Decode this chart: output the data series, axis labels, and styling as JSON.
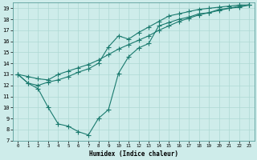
{
  "title": "",
  "xlabel": "Humidex (Indice chaleur)",
  "ylabel": "",
  "background_color": "#ceecea",
  "grid_color": "#aed8d4",
  "line_color": "#1a7a6e",
  "xlim": [
    -0.5,
    23.5
  ],
  "ylim": [
    7,
    19.5
  ],
  "xticks": [
    0,
    1,
    2,
    3,
    4,
    5,
    6,
    7,
    8,
    9,
    10,
    11,
    12,
    13,
    14,
    15,
    16,
    17,
    18,
    19,
    20,
    21,
    22,
    23
  ],
  "yticks": [
    7,
    8,
    9,
    10,
    11,
    12,
    13,
    14,
    15,
    16,
    17,
    18,
    19
  ],
  "series": [
    {
      "x": [
        0,
        1,
        2,
        3,
        4,
        5,
        6,
        7,
        8,
        9,
        10,
        11,
        12,
        13,
        14,
        15,
        16,
        17,
        18,
        19,
        20,
        21,
        22,
        23
      ],
      "y": [
        13,
        12.8,
        12.6,
        12.5,
        13.0,
        13.3,
        13.6,
        13.9,
        14.3,
        14.8,
        15.3,
        15.7,
        16.1,
        16.5,
        17.0,
        17.4,
        17.8,
        18.1,
        18.4,
        18.6,
        18.8,
        19.0,
        19.1,
        19.3
      ]
    },
    {
      "x": [
        0,
        1,
        2,
        3,
        4,
        5,
        6,
        7,
        8,
        9,
        10,
        11,
        12,
        13,
        14,
        15,
        16,
        17,
        18,
        19,
        20,
        21,
        22,
        23
      ],
      "y": [
        13,
        12.2,
        11.7,
        10.0,
        8.5,
        8.3,
        7.8,
        7.5,
        9.0,
        9.8,
        13.1,
        14.6,
        15.4,
        15.8,
        17.4,
        17.7,
        18.0,
        18.2,
        18.5,
        18.6,
        18.9,
        19.0,
        19.2,
        19.3
      ]
    },
    {
      "x": [
        0,
        1,
        2,
        3,
        4,
        5,
        6,
        7,
        8,
        9,
        10,
        11,
        12,
        13,
        14,
        15,
        16,
        17,
        18,
        19,
        20,
        21,
        22,
        23
      ],
      "y": [
        13,
        12.2,
        12.0,
        12.3,
        12.5,
        12.8,
        13.2,
        13.5,
        14.0,
        15.5,
        16.5,
        16.2,
        16.8,
        17.3,
        17.8,
        18.3,
        18.5,
        18.7,
        18.9,
        19.0,
        19.1,
        19.2,
        19.3,
        19.3
      ]
    }
  ]
}
